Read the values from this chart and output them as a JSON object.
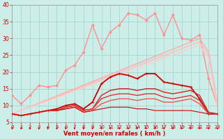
{
  "xlabel": "Vent moyen/en rafales ( km/h )",
  "xlim": [
    0,
    23
  ],
  "ylim": [
    5,
    40
  ],
  "yticks": [
    5,
    10,
    15,
    20,
    25,
    30,
    35,
    40
  ],
  "xticks": [
    0,
    1,
    2,
    3,
    4,
    5,
    6,
    7,
    8,
    9,
    10,
    11,
    12,
    13,
    14,
    15,
    16,
    17,
    18,
    19,
    20,
    21,
    22,
    23
  ],
  "bg_color": "#cceee8",
  "grid_color": "#aad4ce",
  "series": [
    {
      "name": "pink_top_markers",
      "x": [
        0,
        1,
        2,
        3,
        4,
        5,
        6,
        7,
        8,
        9,
        10,
        11,
        12,
        13,
        14,
        15,
        16,
        17,
        18,
        19,
        20,
        21,
        22,
        23
      ],
      "y": [
        13,
        10.5,
        13,
        16,
        15.5,
        16,
        20.5,
        22,
        26,
        34,
        27,
        32,
        34,
        37.5,
        37,
        35.5,
        37.5,
        31,
        37,
        30,
        29.5,
        31,
        18,
        10
      ],
      "color": "#ff9090",
      "lw": 1.0,
      "marker": "D",
      "ms": 2.0
    },
    {
      "name": "light_pink_straight1",
      "x": [
        0,
        21,
        22,
        23
      ],
      "y": [
        7.5,
        30,
        26,
        10.5
      ],
      "color": "#ffaaaa",
      "lw": 1.0,
      "marker": null,
      "ms": 0
    },
    {
      "name": "light_pink_straight2",
      "x": [
        0,
        21,
        22,
        23
      ],
      "y": [
        7.5,
        29,
        25,
        10
      ],
      "color": "#ffbbbb",
      "lw": 1.0,
      "marker": null,
      "ms": 0
    },
    {
      "name": "light_pink_straight3",
      "x": [
        0,
        21,
        22,
        23
      ],
      "y": [
        7.5,
        28,
        24,
        9.5
      ],
      "color": "#ffcccc",
      "lw": 1.0,
      "marker": null,
      "ms": 0
    },
    {
      "name": "red_mid_markers",
      "x": [
        0,
        1,
        2,
        3,
        4,
        5,
        6,
        7,
        8,
        9,
        10,
        11,
        12,
        13,
        14,
        15,
        16,
        17,
        18,
        19,
        20,
        21,
        22,
        23
      ],
      "y": [
        7.5,
        7,
        7.5,
        8,
        8.5,
        9,
        10,
        10.5,
        9,
        11,
        16.5,
        18.5,
        19.5,
        19,
        18,
        19.5,
        19.5,
        17,
        16.5,
        16,
        15.5,
        12,
        7.5,
        7.5
      ],
      "color": "#cc0000",
      "lw": 1.3,
      "marker": "+",
      "ms": 3.0
    },
    {
      "name": "red_curve1",
      "x": [
        0,
        1,
        2,
        3,
        4,
        5,
        6,
        7,
        8,
        9,
        10,
        11,
        12,
        13,
        14,
        15,
        16,
        17,
        18,
        19,
        20,
        21,
        22,
        23
      ],
      "y": [
        7.5,
        7,
        7.5,
        8,
        8.5,
        8.5,
        9.5,
        10,
        8.5,
        9,
        13,
        14.5,
        15,
        15,
        14.5,
        15,
        15,
        14,
        13.5,
        14,
        14.5,
        13,
        8,
        7.5
      ],
      "color": "#cc2222",
      "lw": 1.0,
      "marker": null,
      "ms": 0
    },
    {
      "name": "red_curve2",
      "x": [
        0,
        1,
        2,
        3,
        4,
        5,
        6,
        7,
        8,
        9,
        10,
        11,
        12,
        13,
        14,
        15,
        16,
        17,
        18,
        19,
        20,
        21,
        22,
        23
      ],
      "y": [
        7.5,
        7,
        7.5,
        8,
        8.5,
        8.5,
        9.5,
        10,
        8.5,
        9,
        12,
        13,
        13.5,
        13.5,
        13,
        13.5,
        13.5,
        12.5,
        12,
        12.5,
        13,
        11.5,
        7.5,
        7.5
      ],
      "color": "#dd3333",
      "lw": 1.0,
      "marker": null,
      "ms": 0
    },
    {
      "name": "red_curve3",
      "x": [
        0,
        1,
        2,
        3,
        4,
        5,
        6,
        7,
        8,
        9,
        10,
        11,
        12,
        13,
        14,
        15,
        16,
        17,
        18,
        19,
        20,
        21,
        22,
        23
      ],
      "y": [
        7.5,
        7,
        7.5,
        8,
        8.5,
        8.5,
        9,
        9.5,
        8,
        8.5,
        10.5,
        11.5,
        12,
        12,
        11.5,
        12,
        12,
        11,
        11,
        11.5,
        12,
        10.5,
        7.5,
        7.5
      ],
      "color": "#ee5555",
      "lw": 1.0,
      "marker": null,
      "ms": 0
    },
    {
      "name": "red_bottom_flat",
      "x": [
        0,
        1,
        2,
        3,
        4,
        5,
        6,
        7,
        8,
        9,
        10,
        11,
        12,
        13,
        14,
        15,
        16,
        17,
        18,
        19,
        20,
        21,
        22,
        23
      ],
      "y": [
        7.5,
        7,
        7.5,
        8,
        8.5,
        8.5,
        9,
        9.5,
        8,
        8.5,
        9,
        9.5,
        9.5,
        9.5,
        9,
        9,
        8.5,
        8.5,
        8.5,
        8.5,
        8.5,
        8,
        7.5,
        7.5
      ],
      "color": "#cc0000",
      "lw": 0.8,
      "marker": null,
      "ms": 0
    }
  ],
  "arrow_color": "#cc0000",
  "xlabel_color": "#cc0000",
  "tick_color": "#cc0000",
  "axis_color": "#999999",
  "figsize": [
    3.2,
    2.0
  ],
  "dpi": 100
}
